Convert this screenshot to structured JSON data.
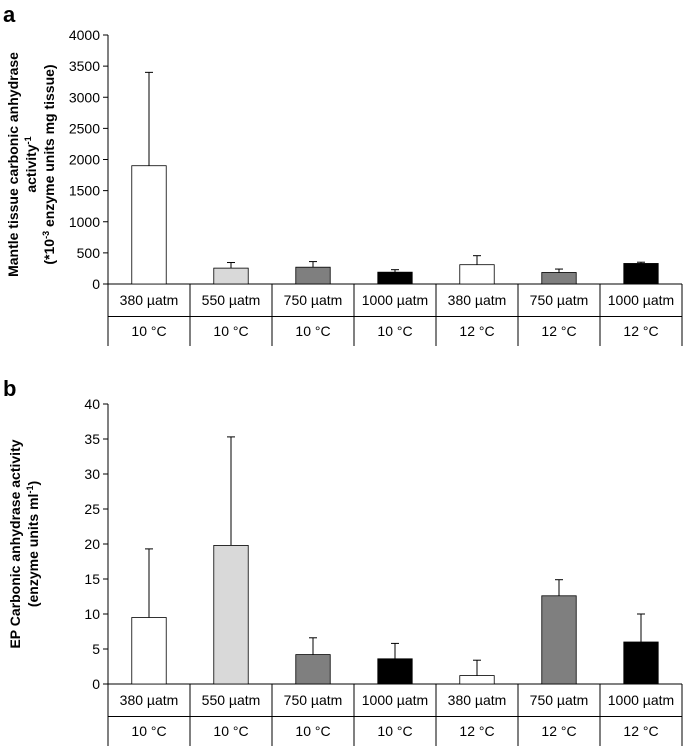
{
  "chart_data": [
    {
      "type": "bar",
      "panel": "a",
      "title": "",
      "ylabel_line1": "Mantle tissue carbonic anhydrase",
      "ylabel_line2_parts": [
        "activity",
        "-1"
      ],
      "ylabel_line3_parts": [
        "(*10",
        "-3",
        " enzyme units mg tissue)"
      ],
      "ylim": [
        0,
        4000
      ],
      "yticks": [
        0,
        500,
        1000,
        1500,
        2000,
        2500,
        3000,
        3500,
        4000
      ],
      "categories": [
        {
          "co2": "380 µatm",
          "temp": "10 °C"
        },
        {
          "co2": "550 µatm",
          "temp": "10 °C"
        },
        {
          "co2": "750 µatm",
          "temp": "10 °C"
        },
        {
          "co2": "1000 µatm",
          "temp": "10 °C"
        },
        {
          "co2": "380 µatm",
          "temp": "12 °C"
        },
        {
          "co2": "750 µatm",
          "temp": "12 °C"
        },
        {
          "co2": "1000 µatm",
          "temp": "12 °C"
        }
      ],
      "values": [
        1900,
        255,
        270,
        190,
        310,
        185,
        330
      ],
      "errors": [
        1500,
        90,
        90,
        40,
        145,
        55,
        20
      ],
      "colors": [
        "#ffffff",
        "#d9d9d9",
        "#7f7f7f",
        "#000000",
        "#ffffff",
        "#7f7f7f",
        "#000000"
      ]
    },
    {
      "type": "bar",
      "panel": "b",
      "title": "",
      "ylabel_line1": "EP Carbonic anhydrase activity",
      "ylabel_line2_parts": [
        "(enzyme units ml",
        "-1",
        ")"
      ],
      "ylim": [
        0,
        40
      ],
      "yticks": [
        0,
        5,
        10,
        15,
        20,
        25,
        30,
        35,
        40
      ],
      "categories": [
        {
          "co2": "380 µatm",
          "temp": "10 °C"
        },
        {
          "co2": "550 µatm",
          "temp": "10 °C"
        },
        {
          "co2": "750 µatm",
          "temp": "10 °C"
        },
        {
          "co2": "1000 µatm",
          "temp": "10 °C"
        },
        {
          "co2": "380 µatm",
          "temp": "12 °C"
        },
        {
          "co2": "750 µatm",
          "temp": "12 °C"
        },
        {
          "co2": "1000 µatm",
          "temp": "12 °C"
        }
      ],
      "values": [
        9.5,
        19.8,
        4.2,
        3.6,
        1.2,
        12.6,
        6.0
      ],
      "errors": [
        9.8,
        15.5,
        2.4,
        2.2,
        2.2,
        2.3,
        4.0
      ],
      "colors": [
        "#ffffff",
        "#d9d9d9",
        "#7f7f7f",
        "#000000",
        "#ffffff",
        "#7f7f7f",
        "#000000"
      ]
    }
  ]
}
